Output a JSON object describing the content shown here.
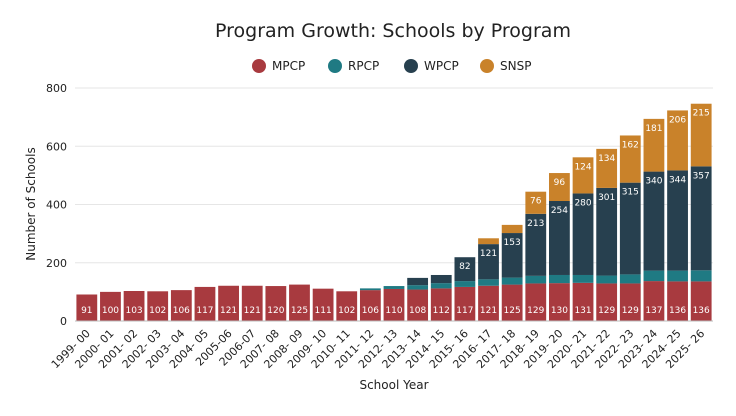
{
  "chart_data": {
    "type": "bar",
    "stacked": true,
    "title": "Program Growth: Schools by Program",
    "xlabel": "School Year",
    "ylabel": "Number of Schools",
    "ylim": [
      0,
      800
    ],
    "yticks": [
      0,
      200,
      400,
      600,
      800
    ],
    "legend_position": "top-center",
    "grid": true,
    "categories": [
      "1999- 00",
      "2000- 01",
      "2001- 02",
      "2002- 03",
      "2003- 04",
      "2004- 05",
      "2005-06",
      "2006-07",
      "2007- 08",
      "2008- 09",
      "2009- 10",
      "2010- 11",
      "2011- 12",
      "2012- 13",
      "2013- 14",
      "2014- 15",
      "2015- 16",
      "2016- 17",
      "2017- 18",
      "2018- 19",
      "2019- 20",
      "2020- 21",
      "2021- 22",
      "2022- 23",
      "2023- 24",
      "2024- 25",
      "2025- 26"
    ],
    "series": [
      {
        "name": "MPCP",
        "color": "#a83a3f",
        "values": [
          91,
          100,
          103,
          102,
          106,
          117,
          121,
          121,
          120,
          125,
          111,
          102,
          106,
          110,
          108,
          112,
          117,
          121,
          125,
          129,
          130,
          131,
          129,
          129,
          137,
          136,
          136
        ]
      },
      {
        "name": "RPCP",
        "color": "#1f7a83",
        "values": [
          0,
          0,
          0,
          0,
          0,
          0,
          0,
          0,
          0,
          0,
          0,
          0,
          6,
          10,
          15,
          18,
          20,
          22,
          24,
          26,
          28,
          27,
          27,
          31,
          36,
          37,
          38
        ]
      },
      {
        "name": "WPCP",
        "color": "#27404f",
        "values": [
          0,
          0,
          0,
          0,
          0,
          0,
          0,
          0,
          0,
          0,
          0,
          0,
          0,
          0,
          25,
          28,
          82,
          121,
          153,
          213,
          254,
          280,
          301,
          315,
          340,
          344,
          357
        ]
      },
      {
        "name": "SNSP",
        "color": "#c9822a",
        "values": [
          0,
          0,
          0,
          0,
          0,
          0,
          0,
          0,
          0,
          0,
          0,
          0,
          0,
          0,
          0,
          0,
          0,
          20,
          28,
          76,
          96,
          124,
          134,
          162,
          181,
          206,
          215
        ]
      }
    ],
    "labels": {
      "MPCP": [
        "91",
        "100",
        "103",
        "102",
        "106",
        "117",
        "121",
        "121",
        "120",
        "125",
        "111",
        "102",
        "106",
        "110",
        "108",
        "112",
        "117",
        "121",
        "125",
        "129",
        "130",
        "131",
        "129",
        "129",
        "137",
        "136",
        "136"
      ],
      "RPCP": [
        "",
        "",
        "",
        "",
        "",
        "",
        "",
        "",
        "",
        "",
        "",
        "",
        "",
        "",
        "",
        "",
        "",
        "",
        "",
        "",
        "",
        "",
        "",
        "",
        "",
        "",
        ""
      ],
      "WPCP": [
        "",
        "",
        "",
        "",
        "",
        "",
        "",
        "",
        "",
        "",
        "",
        "",
        "",
        "",
        "",
        "",
        "82",
        "121",
        "153",
        "213",
        "254",
        "280",
        "301",
        "315",
        "340",
        "344",
        "357"
      ],
      "SNSP": [
        "",
        "",
        "",
        "",
        "",
        "",
        "",
        "",
        "",
        "",
        "",
        "",
        "",
        "",
        "",
        "",
        "",
        "",
        "",
        "76",
        "96",
        "124",
        "134",
        "162",
        "181",
        "206",
        "215"
      ]
    }
  }
}
